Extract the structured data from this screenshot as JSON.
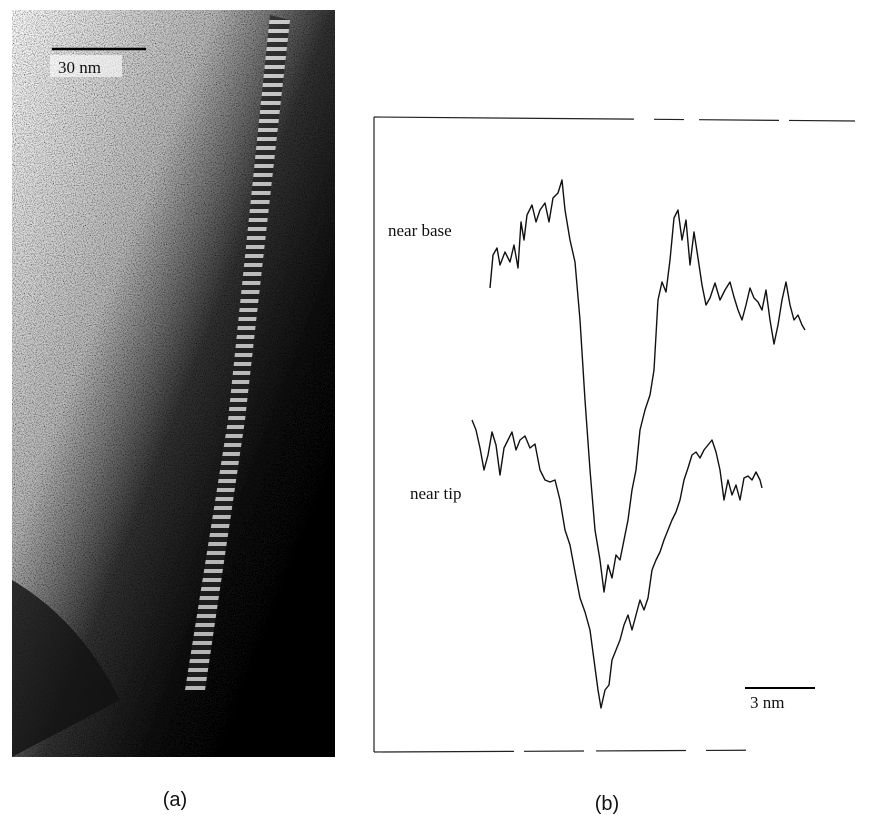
{
  "panel_a": {
    "scale_bar_label": "30 nm",
    "caption": "(a)"
  },
  "panel_b": {
    "trace_labels": [
      "near base",
      "near tip"
    ],
    "scale_bar_label": "3 nm",
    "caption": "(b)"
  }
}
